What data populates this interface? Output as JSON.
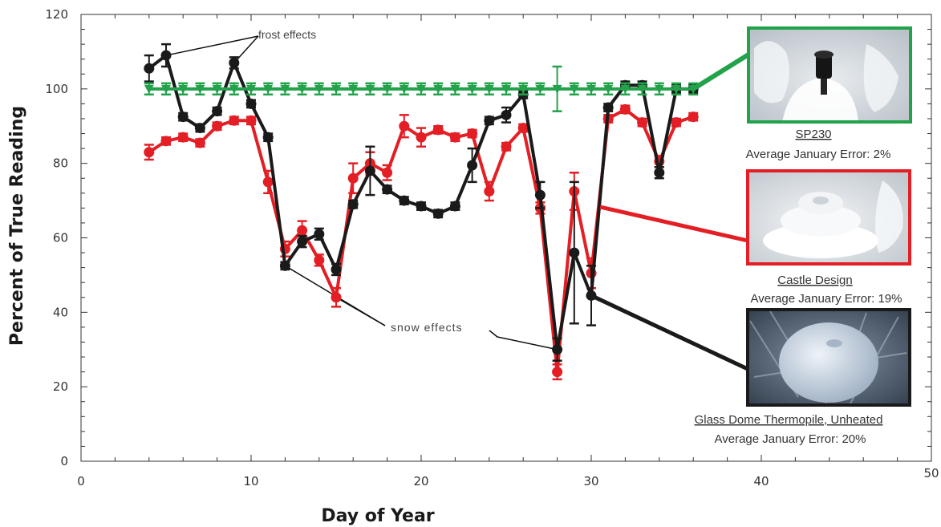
{
  "chart_data": {
    "type": "line",
    "title": "",
    "xlabel": "Day of Year",
    "ylabel": "Percent of True Reading",
    "xlim": [
      0,
      50
    ],
    "ylim": [
      0,
      120
    ],
    "xticks": [
      "0",
      "10",
      "20",
      "30",
      "40",
      "50"
    ],
    "yticks": [
      "0",
      "20",
      "40",
      "60",
      "80",
      "100",
      "120"
    ],
    "grid": false,
    "legend": "right (photo insets)",
    "series": [
      {
        "name": "SP230",
        "color": "#22a24a",
        "marker": "triangle-down",
        "x": [
          4,
          5,
          6,
          7,
          8,
          9,
          10,
          11,
          12,
          13,
          14,
          15,
          16,
          17,
          18,
          19,
          20,
          21,
          22,
          23,
          24,
          25,
          26,
          27,
          28,
          29,
          30,
          31,
          32,
          33,
          34,
          35,
          36
        ],
        "y": [
          100,
          100,
          100,
          100,
          100,
          100,
          100,
          100,
          100,
          100,
          100,
          100,
          100,
          100,
          100,
          100,
          100,
          100,
          100,
          100,
          100,
          100,
          100,
          100,
          100,
          100,
          100,
          100,
          100,
          100,
          100,
          100,
          100
        ],
        "err": [
          1.5,
          1.5,
          1.5,
          1.5,
          1.5,
          1.5,
          1.5,
          1.5,
          1.5,
          1.5,
          1.5,
          1.5,
          1.5,
          1.5,
          1.5,
          1.5,
          1.5,
          1.5,
          1.5,
          1.5,
          1.5,
          1.5,
          1.5,
          1.5,
          6,
          1.5,
          1.5,
          1.5,
          1.5,
          1.5,
          1.5,
          1.5,
          1.5
        ]
      },
      {
        "name": "Castle Design",
        "color": "#e31e24",
        "marker": "circle",
        "x": [
          4,
          5,
          6,
          7,
          8,
          9,
          10,
          11,
          12,
          13,
          14,
          15,
          16,
          17,
          18,
          19,
          20,
          21,
          22,
          23,
          24,
          25,
          26,
          27,
          28,
          29,
          30,
          31,
          32,
          33,
          34,
          35,
          36
        ],
        "y": [
          83,
          86,
          87,
          85.5,
          90,
          91.5,
          91.5,
          75,
          57,
          62,
          54,
          44,
          76,
          80,
          77.5,
          90,
          87,
          89,
          87,
          88,
          72.5,
          84.5,
          89.5,
          68,
          24,
          72.5,
          50.5,
          92,
          94.5,
          91,
          80.5,
          91,
          92.5
        ],
        "err": [
          2,
          1,
          1,
          1,
          1,
          1,
          1,
          3,
          2,
          2.5,
          1.5,
          2.5,
          4,
          3,
          2,
          3,
          2.5,
          1,
          1,
          1,
          2.5,
          1,
          1,
          1.5,
          2,
          5,
          4,
          1,
          1,
          1,
          1.5,
          1,
          1
        ]
      },
      {
        "name": "Glass Dome Thermopile, Unheated",
        "color": "#1a1a1a",
        "marker": "circle",
        "x": [
          4,
          5,
          6,
          7,
          8,
          9,
          10,
          11,
          12,
          13,
          14,
          15,
          16,
          17,
          18,
          19,
          20,
          21,
          22,
          23,
          24,
          25,
          26,
          27,
          28,
          29,
          30,
          31,
          32,
          33,
          34,
          35,
          36
        ],
        "y": [
          105.5,
          109,
          92.5,
          89.5,
          94,
          107,
          96,
          87,
          52.5,
          59,
          61,
          51.5,
          69,
          78,
          73,
          70,
          68.5,
          66.5,
          68.5,
          79.5,
          91.5,
          93,
          98.5,
          71.5,
          30,
          56,
          44.5,
          95,
          101,
          101,
          77.5,
          100,
          100
        ],
        "err": [
          3.5,
          3,
          1,
          1,
          1,
          1.5,
          1,
          1,
          1,
          1.5,
          1.5,
          1.5,
          1,
          6.5,
          1,
          1,
          1,
          1,
          1,
          4.5,
          1,
          2,
          1,
          3.5,
          3,
          19,
          8,
          1,
          1,
          1,
          1.5,
          1,
          1
        ]
      }
    ],
    "annotations": [
      {
        "text": "frost effects",
        "points": [
          [
            5,
            109
          ],
          [
            9,
            107
          ]
        ]
      },
      {
        "text": "snow effects",
        "points": [
          [
            12,
            52.5
          ],
          [
            15,
            44
          ],
          [
            28,
            30
          ]
        ]
      }
    ],
    "insets": [
      {
        "series": "SP230",
        "label": "SP230",
        "error": "Average January Error: 2%",
        "border": "#22a24a"
      },
      {
        "series": "Castle Design",
        "label": "Castle Design",
        "error": "Average January Error: 19%",
        "border": "#e31e24"
      },
      {
        "series": "Glass Dome Thermopile, Unheated",
        "label": "Glass Dome Thermopile, Unheated",
        "error": "Average January Error: 20%",
        "border": "#1a1a1a"
      }
    ]
  }
}
